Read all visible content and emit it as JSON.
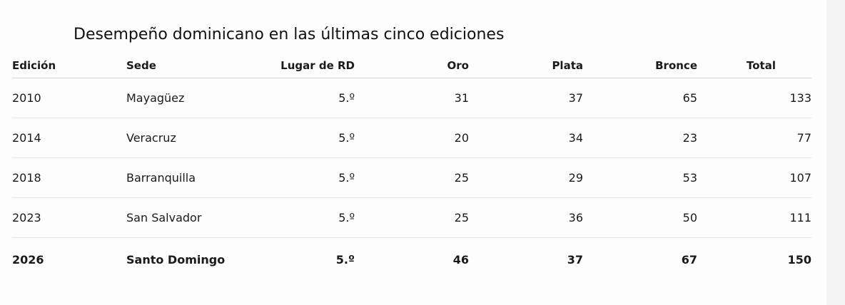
{
  "caption": "Desempeño dominicano en las últimas cinco ediciones",
  "columns": [
    "Edición",
    "Sede",
    "Lugar de RD",
    "Oro",
    "Plata",
    "Bronce",
    "Total"
  ],
  "rows": [
    {
      "edicion": "2010",
      "sede": "Mayagüez",
      "lugar": "5.º",
      "oro": "31",
      "plata": "37",
      "bronce": "65",
      "total": "133"
    },
    {
      "edicion": "2014",
      "sede": "Veracruz",
      "lugar": "5.º",
      "oro": "20",
      "plata": "34",
      "bronce": "23",
      "total": "77"
    },
    {
      "edicion": "2018",
      "sede": "Barranquilla",
      "lugar": "5.º",
      "oro": "25",
      "plata": "29",
      "bronce": "53",
      "total": "107"
    },
    {
      "edicion": "2023",
      "sede": "San Salvador",
      "lugar": "5.º",
      "oro": "25",
      "plata": "36",
      "bronce": "50",
      "total": "111"
    },
    {
      "edicion": "2026",
      "sede": "Santo Domingo",
      "lugar": "5.º",
      "oro": "46",
      "plata": "37",
      "bronce": "67",
      "total": "150"
    }
  ]
}
